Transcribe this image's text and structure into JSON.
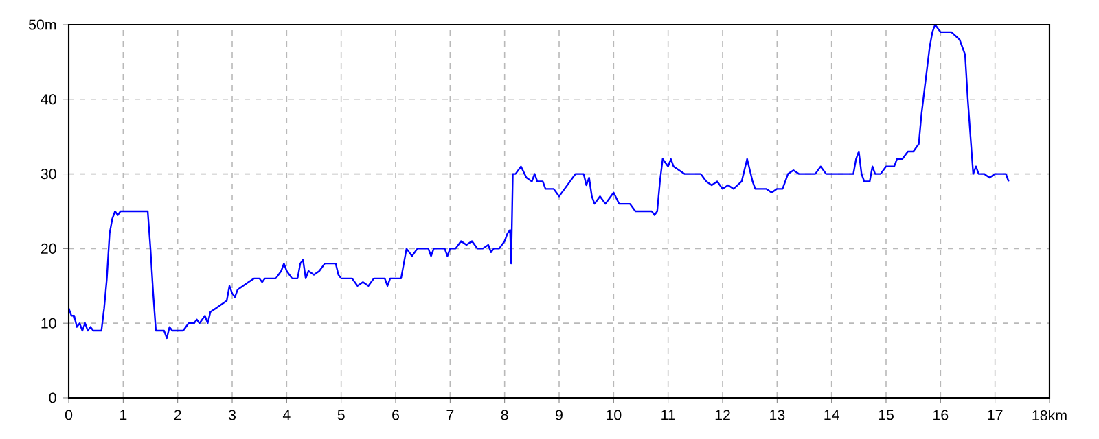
{
  "chart_data": {
    "type": "line",
    "grid": true,
    "marker": "none",
    "line_style": "solid",
    "xlim": [
      0,
      18
    ],
    "ylim": [
      0,
      50
    ],
    "xticks": [
      0,
      1,
      2,
      3,
      4,
      5,
      6,
      7,
      8,
      9,
      10,
      11,
      12,
      13,
      14,
      15,
      16,
      17,
      {
        "value": 18,
        "label": "18km"
      }
    ],
    "yticks": [
      0,
      10,
      20,
      30,
      40,
      {
        "value": 50,
        "label": "50m"
      }
    ],
    "series": [
      {
        "color": "#0000ff",
        "x": [
          0,
          0.05,
          0.1,
          0.15,
          0.2,
          0.25,
          0.3,
          0.35,
          0.4,
          0.45,
          0.6,
          0.65,
          0.7,
          0.75,
          0.8,
          0.85,
          0.9,
          0.95,
          1.0,
          1.4,
          1.45,
          1.5,
          1.55,
          1.6,
          1.7,
          1.75,
          1.8,
          1.85,
          1.9,
          1.95,
          2.1,
          2.2,
          2.3,
          2.35,
          2.4,
          2.5,
          2.55,
          2.6,
          2.7,
          2.8,
          2.9,
          2.95,
          3.0,
          3.05,
          3.1,
          3.2,
          3.3,
          3.4,
          3.5,
          3.55,
          3.6,
          3.8,
          3.9,
          3.95,
          4.0,
          4.05,
          4.1,
          4.2,
          4.25,
          4.3,
          4.35,
          4.4,
          4.5,
          4.6,
          4.7,
          4.9,
          4.95,
          5.0,
          5.2,
          5.3,
          5.4,
          5.5,
          5.6,
          5.8,
          5.85,
          5.9,
          6.1,
          6.15,
          6.2,
          6.3,
          6.4,
          6.6,
          6.65,
          6.7,
          6.9,
          6.95,
          7.0,
          7.1,
          7.2,
          7.3,
          7.4,
          7.5,
          7.6,
          7.7,
          7.75,
          7.8,
          7.9,
          8.0,
          8.05,
          8.1,
          8.12,
          8.15,
          8.2,
          8.3,
          8.4,
          8.5,
          8.55,
          8.6,
          8.7,
          8.75,
          8.9,
          9.0,
          9.1,
          9.2,
          9.3,
          9.45,
          9.5,
          9.55,
          9.6,
          9.65,
          9.75,
          9.85,
          9.95,
          10.0,
          10.1,
          10.3,
          10.4,
          10.7,
          10.75,
          10.8,
          10.85,
          10.9,
          11.0,
          11.05,
          11.1,
          11.3,
          11.6,
          11.7,
          11.8,
          11.9,
          12.0,
          12.1,
          12.2,
          12.35,
          12.45,
          12.55,
          12.6,
          12.8,
          12.9,
          13.0,
          13.1,
          13.15,
          13.2,
          13.3,
          13.4,
          13.5,
          13.7,
          13.8,
          13.9,
          14.0,
          14.4,
          14.45,
          14.5,
          14.55,
          14.6,
          14.7,
          14.75,
          14.8,
          14.9,
          15.0,
          15.15,
          15.2,
          15.3,
          15.4,
          15.5,
          15.6,
          15.65,
          15.75,
          15.8,
          15.85,
          15.9,
          16.0,
          16.2,
          16.35,
          16.45,
          16.5,
          16.6,
          16.65,
          16.7,
          16.8,
          16.9,
          17.0,
          17.2,
          17.25
        ],
        "values": [
          12,
          11,
          11,
          9.5,
          10,
          9,
          10,
          9,
          9.5,
          9,
          9,
          12,
          16,
          22,
          24,
          25,
          24.5,
          25,
          25,
          25,
          25,
          20,
          14,
          9,
          9,
          9,
          8,
          9.5,
          9,
          9,
          9,
          10,
          10,
          10.5,
          10,
          11,
          10,
          11.5,
          12,
          12.5,
          13,
          15,
          14,
          13.5,
          14.5,
          15,
          15.5,
          16,
          16,
          15.5,
          16,
          16,
          17,
          18,
          17,
          16.5,
          16,
          16,
          18,
          18.5,
          16,
          17,
          16.5,
          17,
          18,
          18,
          16.5,
          16,
          16,
          15,
          15.5,
          15,
          16,
          16,
          15,
          16,
          16,
          18,
          20,
          19,
          20,
          20,
          19,
          20,
          20,
          19,
          20,
          20,
          21,
          20.5,
          21,
          20,
          20,
          20.5,
          19.5,
          20,
          20,
          21,
          22,
          22.5,
          18,
          30,
          30,
          31,
          29.5,
          29,
          30,
          29,
          29,
          28,
          28,
          27,
          28,
          29,
          30,
          30,
          28.5,
          29.5,
          27,
          26,
          27,
          26,
          27,
          27.5,
          26,
          26,
          25,
          25,
          24.5,
          25,
          29,
          32,
          31,
          32,
          31,
          30,
          30,
          29,
          28.5,
          29,
          28,
          28.5,
          28,
          29,
          32,
          29,
          28,
          28,
          27.5,
          28,
          28,
          29,
          30,
          30.5,
          30,
          30,
          30,
          31,
          30,
          30,
          30,
          32,
          33,
          30,
          29,
          29,
          31,
          30,
          30,
          31,
          31,
          32,
          32,
          33,
          33,
          34,
          38,
          44,
          47,
          49,
          50,
          49,
          49,
          48,
          46,
          40,
          30,
          31,
          30,
          30,
          29.5,
          30,
          30,
          29
        ]
      }
    ]
  }
}
